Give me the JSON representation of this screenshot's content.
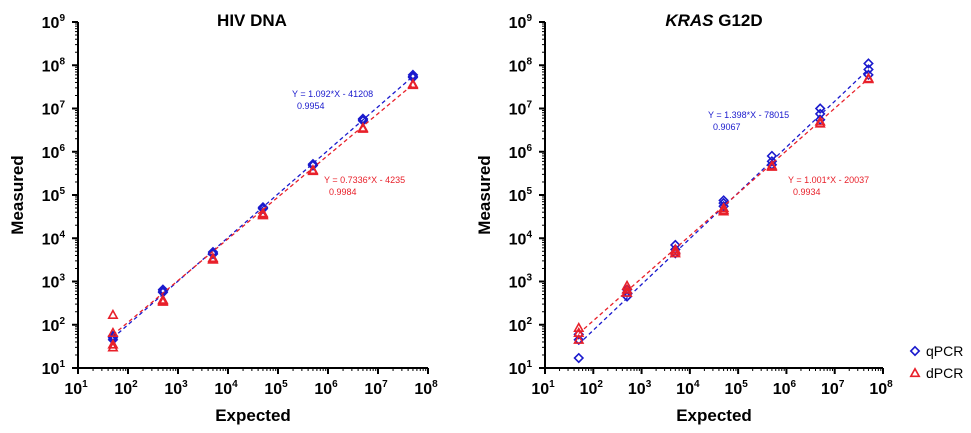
{
  "legend": {
    "position": "bottom-right",
    "entries": [
      {
        "label": "qPCR",
        "color": "#1a1acd",
        "marker": "diamond-open"
      },
      {
        "label": "dPCR",
        "color": "#e8202a",
        "marker": "triangle-open"
      }
    ]
  },
  "chart_data": [
    {
      "type": "scatter",
      "title": "HIV DNA",
      "title_parts": [
        {
          "text": "HIV DNA",
          "italic": false
        }
      ],
      "xlabel": "Expected",
      "ylabel": "Measured",
      "xscale": "log",
      "yscale": "log",
      "xlim": [
        10,
        100000000
      ],
      "ylim": [
        10,
        1000000000
      ],
      "x_ticks": [
        {
          "base": "10",
          "exp": "1",
          "value": 10
        },
        {
          "base": "10",
          "exp": "2",
          "value": 100
        },
        {
          "base": "10",
          "exp": "3",
          "value": 1000
        },
        {
          "base": "10",
          "exp": "4",
          "value": 10000
        },
        {
          "base": "10",
          "exp": "5",
          "value": 100000
        },
        {
          "base": "10",
          "exp": "6",
          "value": 1000000
        },
        {
          "base": "10",
          "exp": "7",
          "value": 10000000
        },
        {
          "base": "10",
          "exp": "8",
          "value": 100000000
        }
      ],
      "y_ticks": [
        {
          "base": "10",
          "exp": "1",
          "value": 10
        },
        {
          "base": "10",
          "exp": "2",
          "value": 100
        },
        {
          "base": "10",
          "exp": "3",
          "value": 1000
        },
        {
          "base": "10",
          "exp": "4",
          "value": 10000
        },
        {
          "base": "10",
          "exp": "5",
          "value": 100000
        },
        {
          "base": "10",
          "exp": "6",
          "value": 1000000
        },
        {
          "base": "10",
          "exp": "7",
          "value": 10000000
        },
        {
          "base": "10",
          "exp": "8",
          "value": 100000000
        },
        {
          "base": "10",
          "exp": "9",
          "value": 1000000000
        }
      ],
      "grid": false,
      "series": [
        {
          "name": "qPCR",
          "color": "#1a1acd",
          "marker": "diamond-open",
          "points": [
            [
              50,
              50
            ],
            [
              50,
              45
            ],
            [
              50,
              55
            ],
            [
              500,
              600
            ],
            [
              500,
              650
            ],
            [
              500,
              560
            ],
            [
              5000,
              4500
            ],
            [
              5000,
              4800
            ],
            [
              5000,
              4300
            ],
            [
              50000,
              50000
            ],
            [
              50000,
              48000
            ],
            [
              50000,
              52000
            ],
            [
              500000,
              500000
            ],
            [
              500000,
              480000
            ],
            [
              500000,
              520000
            ],
            [
              5000000,
              5500000
            ],
            [
              5000000,
              5200000
            ],
            [
              5000000,
              5800000
            ],
            [
              50000000,
              55000000
            ],
            [
              50000000,
              60000000
            ],
            [
              50000000,
              52000000
            ]
          ],
          "fit": {
            "equation": "Y = 1.092*X - 41208",
            "r2": "0.9954",
            "slope": 1.092,
            "intercept": -41208
          }
        },
        {
          "name": "dPCR",
          "color": "#e8202a",
          "marker": "triangle-open",
          "points": [
            [
              50,
              170
            ],
            [
              50,
              65
            ],
            [
              50,
              35
            ],
            [
              50,
              30
            ],
            [
              500,
              380
            ],
            [
              500,
              340
            ],
            [
              500,
              360
            ],
            [
              5000,
              3500
            ],
            [
              5000,
              3200
            ],
            [
              5000,
              3300
            ],
            [
              50000,
              38000
            ],
            [
              50000,
              36000
            ],
            [
              50000,
              34000
            ],
            [
              500000,
              380000
            ],
            [
              500000,
              360000
            ],
            [
              5000000,
              3600000
            ],
            [
              5000000,
              3400000
            ],
            [
              50000000,
              37000000
            ],
            [
              50000000,
              35000000
            ]
          ],
          "fit": {
            "equation": "Y = 0.7336*X - 4235",
            "r2": "0.9984",
            "slope": 0.7336,
            "intercept": -4235
          }
        }
      ]
    },
    {
      "type": "scatter",
      "title": "KRAS G12D",
      "title_parts": [
        {
          "text": "KRAS",
          "italic": true
        },
        {
          "text": " G12D",
          "italic": false
        }
      ],
      "xlabel": "Expected",
      "ylabel": "Measured",
      "xscale": "log",
      "yscale": "log",
      "xlim": [
        10,
        100000000
      ],
      "ylim": [
        10,
        1000000000
      ],
      "x_ticks": [
        {
          "base": "10",
          "exp": "1",
          "value": 10
        },
        {
          "base": "10",
          "exp": "2",
          "value": 100
        },
        {
          "base": "10",
          "exp": "3",
          "value": 1000
        },
        {
          "base": "10",
          "exp": "4",
          "value": 10000
        },
        {
          "base": "10",
          "exp": "5",
          "value": 100000
        },
        {
          "base": "10",
          "exp": "6",
          "value": 1000000
        },
        {
          "base": "10",
          "exp": "7",
          "value": 10000000
        },
        {
          "base": "10",
          "exp": "8",
          "value": 100000000
        }
      ],
      "y_ticks": [
        {
          "base": "10",
          "exp": "1",
          "value": 10
        },
        {
          "base": "10",
          "exp": "2",
          "value": 100
        },
        {
          "base": "10",
          "exp": "3",
          "value": 1000
        },
        {
          "base": "10",
          "exp": "4",
          "value": 10000
        },
        {
          "base": "10",
          "exp": "5",
          "value": 100000
        },
        {
          "base": "10",
          "exp": "6",
          "value": 1000000
        },
        {
          "base": "10",
          "exp": "7",
          "value": 10000000
        },
        {
          "base": "10",
          "exp": "8",
          "value": 100000000
        },
        {
          "base": "10",
          "exp": "9",
          "value": 1000000000
        }
      ],
      "grid": false,
      "series": [
        {
          "name": "qPCR",
          "color": "#1a1acd",
          "marker": "diamond-open",
          "points": [
            [
              50,
              17
            ],
            [
              50,
              60
            ],
            [
              50,
              45
            ],
            [
              500,
              450
            ],
            [
              500,
              550
            ],
            [
              500,
              650
            ],
            [
              5000,
              7000
            ],
            [
              5000,
              5500
            ],
            [
              5000,
              4500
            ],
            [
              50000,
              75000
            ],
            [
              50000,
              65000
            ],
            [
              50000,
              55000
            ],
            [
              500000,
              800000
            ],
            [
              500000,
              600000
            ],
            [
              500000,
              500000
            ],
            [
              5000000,
              10000000
            ],
            [
              5000000,
              7500000
            ],
            [
              5000000,
              5500000
            ],
            [
              50000000,
              110000000
            ],
            [
              50000000,
              80000000
            ],
            [
              50000000,
              60000000
            ]
          ],
          "fit": {
            "equation": "Y = 1.398*X - 78015",
            "r2": "0.9067",
            "slope": 1.398,
            "intercept": -78015
          }
        },
        {
          "name": "dPCR",
          "color": "#e8202a",
          "marker": "triangle-open",
          "points": [
            [
              50,
              85
            ],
            [
              50,
              65
            ],
            [
              50,
              45
            ],
            [
              500,
              800
            ],
            [
              500,
              650
            ],
            [
              500,
              550
            ],
            [
              5000,
              5500
            ],
            [
              5000,
              5000
            ],
            [
              5000,
              4500
            ],
            [
              50000,
              50000
            ],
            [
              50000,
              45000
            ],
            [
              50000,
              42000
            ],
            [
              500000,
              480000
            ],
            [
              500000,
              450000
            ],
            [
              5000000,
              5000000
            ],
            [
              5000000,
              4500000
            ],
            [
              50000000,
              50000000
            ],
            [
              50000000,
              48000000
            ]
          ],
          "fit": {
            "equation": "Y = 1.001*X - 20037",
            "r2": "0.9934",
            "slope": 1.001,
            "intercept": -20037
          }
        }
      ]
    }
  ]
}
